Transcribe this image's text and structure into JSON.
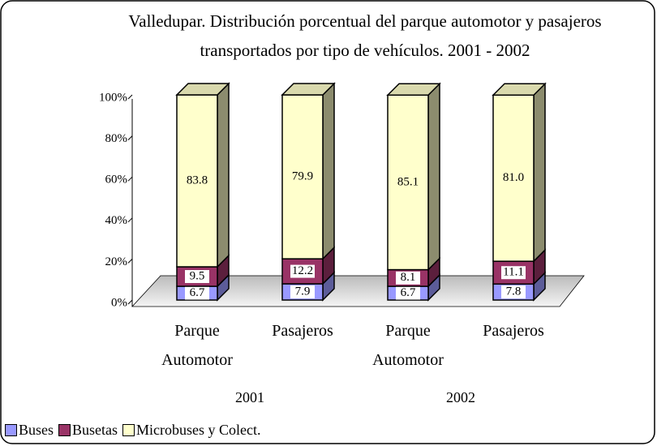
{
  "chart_data": {
    "type": "bar3d_stacked",
    "title": "Valledupar. Distribución porcentual del parque automotor y pasajeros transportados por tipo de vehículos. 2001 - 2002",
    "categories": [
      "Parque Automotor",
      "Pasajeros",
      "Parque Automotor",
      "Pasajeros"
    ],
    "groups": [
      "2001",
      "2002"
    ],
    "series": [
      {
        "name": "Buses",
        "color": "#9999ff",
        "values": [
          6.7,
          7.9,
          6.7,
          7.8
        ]
      },
      {
        "name": "Busetas",
        "color": "#993366",
        "values": [
          9.5,
          12.2,
          8.1,
          11.1
        ]
      },
      {
        "name": "Microbuses y Colect.",
        "color": "#ffffcc",
        "values": [
          83.8,
          79.9,
          85.1,
          81.0
        ],
        "value_labels": [
          "83.8",
          "79.9",
          "85.1",
          "81.0"
        ]
      }
    ],
    "ylim": [
      0,
      100
    ],
    "yticks": [
      {
        "value": 0,
        "label": "0%"
      },
      {
        "value": 20,
        "label": "20%"
      },
      {
        "value": 40,
        "label": "40%"
      },
      {
        "value": 60,
        "label": "60%"
      },
      {
        "value": 80,
        "label": "80%"
      },
      {
        "value": 100,
        "label": "100%"
      }
    ]
  }
}
